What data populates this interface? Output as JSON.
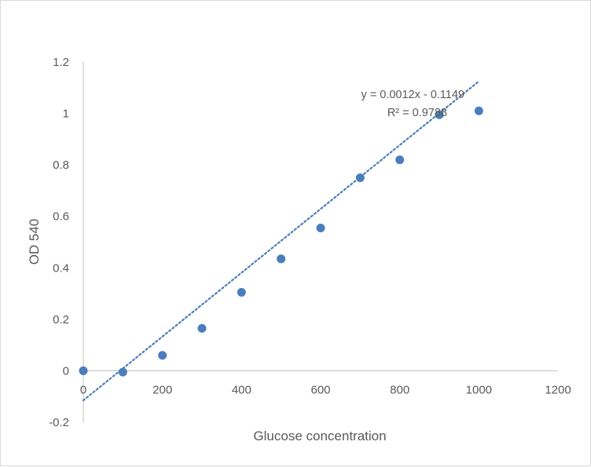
{
  "chart_data": {
    "type": "scatter",
    "title": "",
    "xlabel": "Glucose concentration",
    "ylabel": "OD 540",
    "xlim": [
      0,
      1200
    ],
    "ylim": [
      -0.2,
      1.2
    ],
    "x_ticks": [
      0,
      200,
      400,
      600,
      800,
      1000,
      1200
    ],
    "y_ticks": [
      -0.2,
      0,
      0.2,
      0.4,
      0.6,
      0.8,
      1,
      1.2
    ],
    "x_tick_labels": [
      "0",
      "200",
      "400",
      "600",
      "800",
      "1000",
      "1200"
    ],
    "y_tick_labels": [
      "-0.2",
      "0",
      "0.2",
      "0.4",
      "0.6",
      "0.8",
      "1",
      "1.2"
    ],
    "grid": false,
    "legend": "none",
    "series": [
      {
        "color": "#4a7ebb",
        "x": [
          0,
          100,
          200,
          300,
          400,
          500,
          600,
          700,
          800,
          900,
          1000
        ],
        "y": [
          0,
          -0.005,
          0.06,
          0.165,
          0.305,
          0.435,
          0.555,
          0.75,
          0.82,
          0.995,
          1.01
        ]
      }
    ],
    "trendline": {
      "type": "linear",
      "slope": 0.0012,
      "intercept": -0.1149,
      "x_range": [
        0,
        1000
      ],
      "color": "#4a7ebb",
      "style": "dotted",
      "equation_label": "y = 0.0012x - 0.1149",
      "r2_label": "R² = 0.9788"
    }
  }
}
